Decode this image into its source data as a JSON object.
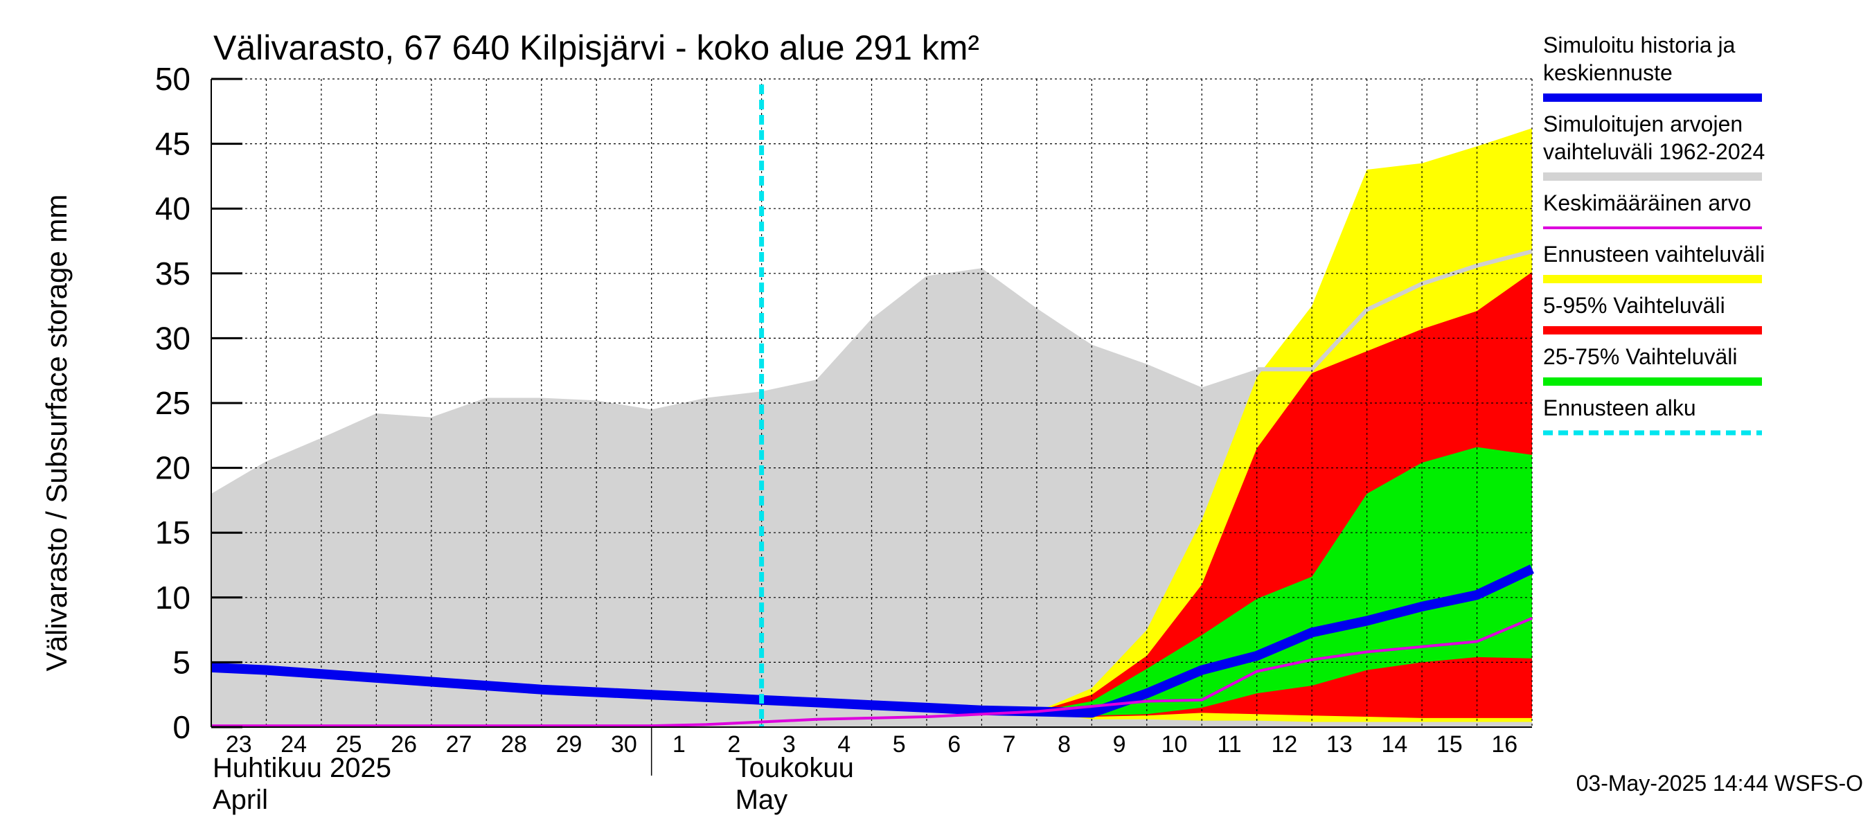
{
  "chart_data": {
    "type": "area",
    "title": "Välivarasto, 67 640 Kilpisjärvi - koko alue 291 km²",
    "ylabel": "Välivarasto / Subsurface storage  mm",
    "ylim": [
      0,
      50
    ],
    "yticks": [
      "0",
      "5",
      "10",
      "15",
      "20",
      "25",
      "30",
      "35",
      "40",
      "45",
      "50"
    ],
    "grid": true,
    "legend_position": "right",
    "x_tick_labels": [
      "23",
      "24",
      "25",
      "26",
      "27",
      "28",
      "29",
      "30",
      "1",
      "2",
      "3",
      "4",
      "5",
      "6",
      "7",
      "8",
      "9",
      "10",
      "11",
      "12",
      "13",
      "14",
      "15",
      "16"
    ],
    "month_labels": [
      {
        "line1": "Huhtikuu  2025",
        "line2": "April"
      },
      {
        "line1": "Toukokuu",
        "line2": "May"
      }
    ],
    "x_range": [
      "2025-04-23",
      "2025-05-17"
    ],
    "forecast_start": "2025-05-03",
    "dates": [
      "2025-04-23",
      "2025-04-24",
      "2025-04-25",
      "2025-04-26",
      "2025-04-27",
      "2025-04-28",
      "2025-04-29",
      "2025-04-30",
      "2025-05-01",
      "2025-05-02",
      "2025-05-03",
      "2025-05-04",
      "2025-05-05",
      "2025-05-06",
      "2025-05-07",
      "2025-05-08",
      "2025-05-09",
      "2025-05-10",
      "2025-05-11",
      "2025-05-12",
      "2025-05-13",
      "2025-05-14",
      "2025-05-15",
      "2025-05-16",
      "2025-05-17"
    ],
    "hist_range": {
      "name": "Simuloitujen arvojen vaihteluväli 1962-2024",
      "color": "#d3d3d3",
      "upper": [
        18,
        20.5,
        22.3,
        24.2,
        23.9,
        25.4,
        25.4,
        25.2,
        24.5,
        25.4,
        25.9,
        26.8,
        31.5,
        34.8,
        35.4,
        32.3,
        29.5,
        28.0,
        26.2,
        27.6,
        27.6,
        32.2,
        34.2,
        35.6,
        36.7
      ],
      "lower": [
        0,
        0,
        0,
        0,
        0,
        0,
        0,
        0,
        0,
        0,
        0,
        0,
        0,
        0,
        0,
        0,
        0,
        0,
        0,
        0,
        0,
        0,
        0,
        0,
        0
      ]
    },
    "forecast_range": {
      "name": "Ennusteen vaihteluväli",
      "color": "#ffff00",
      "upper": [
        3.0,
        7.5,
        16.0,
        27.0,
        32.5,
        43.0,
        43.5,
        44.8,
        46.2
      ],
      "lower": [
        0.6,
        0.6,
        0.5,
        0.5,
        0.4,
        0.4,
        0.4,
        0.4,
        0.4
      ]
    },
    "range_5_95": {
      "name": "5-95% Vaihteluväli",
      "color": "#ff0000",
      "upper": [
        2.5,
        5.5,
        11.0,
        21.5,
        27.3,
        29.0,
        30.7,
        32.1,
        35.1
      ],
      "lower": [
        0.8,
        0.9,
        1.1,
        1.0,
        0.9,
        0.8,
        0.7,
        0.7,
        0.7
      ]
    },
    "range_25_75": {
      "name": "25-75% Vaihteluväli",
      "color": "#00ee00",
      "upper": [
        2.0,
        4.5,
        7.1,
        9.9,
        11.6,
        18.0,
        20.4,
        21.6,
        21.0
      ],
      "lower": [
        0.9,
        1.0,
        1.5,
        2.6,
        3.2,
        4.4,
        5.0,
        5.4,
        5.3
      ]
    },
    "series": [
      {
        "name": "Simuloitu historia ja keskiennuste",
        "color": "#0000ee",
        "values": [
          4.6,
          4.4,
          4.1,
          3.8,
          3.5,
          3.2,
          2.9,
          2.7,
          2.5,
          2.3,
          2.1,
          1.9,
          1.7,
          1.5,
          1.3,
          1.2,
          1.1,
          2.6,
          4.4,
          5.5,
          7.3,
          8.2,
          9.3,
          10.2,
          12.2
        ]
      },
      {
        "name": "Keskimääräinen arvo",
        "color": "#dd00dd",
        "values": [
          0.1,
          0.1,
          0.1,
          0.1,
          0.1,
          0.1,
          0.1,
          0.1,
          0.1,
          0.2,
          0.4,
          0.6,
          0.7,
          0.8,
          1.0,
          1.2,
          1.6,
          2.0,
          2.1,
          4.3,
          5.2,
          5.8,
          6.2,
          6.6,
          8.4
        ]
      }
    ],
    "forecast_start_label": "Ennusteen alku",
    "forecast_start_color": "#00e5ee"
  },
  "legend": [
    {
      "lines": [
        "Simuloitu historia ja",
        "keskiennuste"
      ],
      "color": "#0000ee",
      "style": "solid"
    },
    {
      "lines": [
        "Simuloitujen arvojen",
        "vaihteluväli 1962-2024"
      ],
      "color": "#d3d3d3",
      "style": "solid"
    },
    {
      "lines": [
        "Keskimääräinen arvo"
      ],
      "color": "#dd00dd",
      "style": "thin"
    },
    {
      "lines": [
        "Ennusteen vaihteluväli"
      ],
      "color": "#ffff00",
      "style": "solid"
    },
    {
      "lines": [
        "5-95% Vaihteluväli"
      ],
      "color": "#ff0000",
      "style": "solid"
    },
    {
      "lines": [
        "25-75% Vaihteluväli"
      ],
      "color": "#00ee00",
      "style": "solid"
    },
    {
      "lines": [
        "Ennusteen alku"
      ],
      "color": "#00e5ee",
      "style": "dashed"
    }
  ],
  "timestamp": "03-May-2025 14:44 WSFS-O"
}
